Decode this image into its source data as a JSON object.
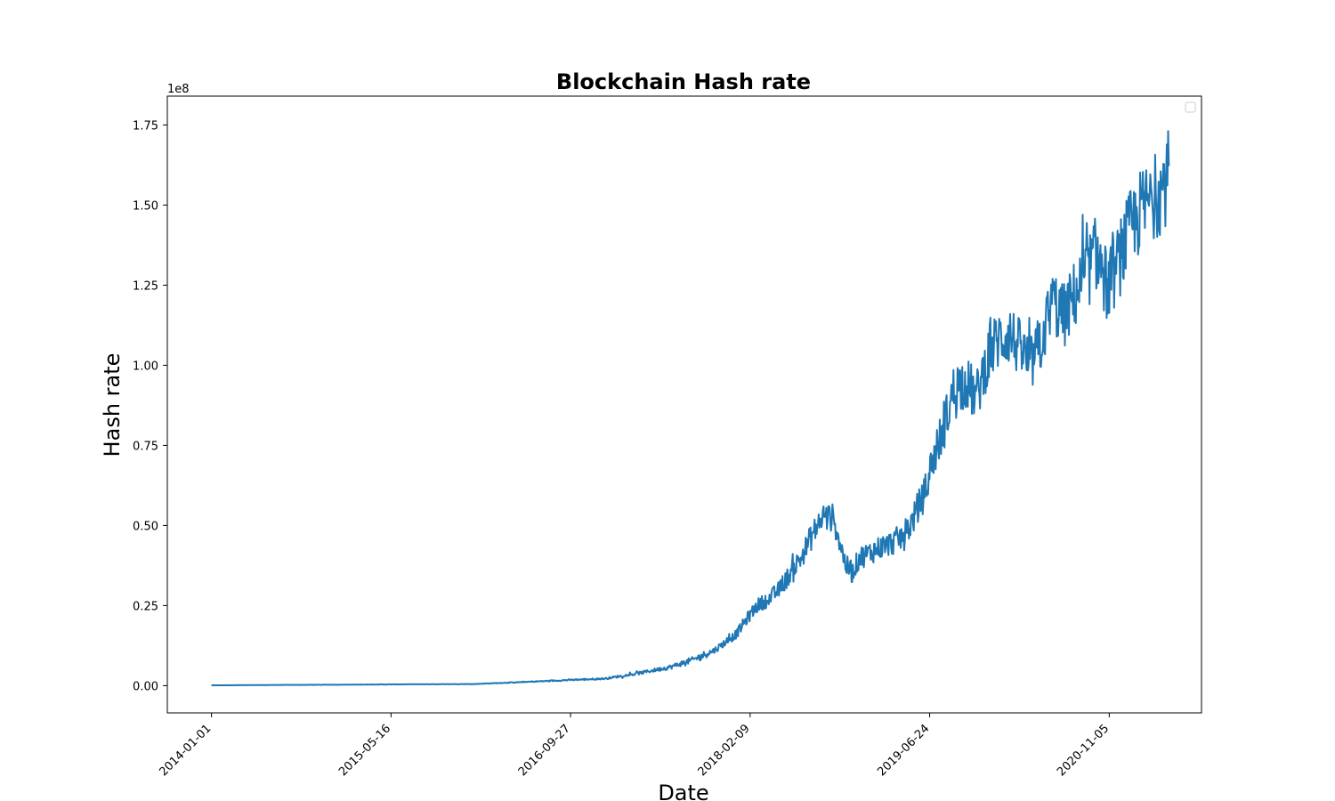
{
  "chart_data": {
    "type": "line",
    "title": "Blockchain Hash rate",
    "xlabel": "Date",
    "ylabel": "Hash rate",
    "y_scale_label": "1e8",
    "y_multiplier": 100000000,
    "xlim": [
      "2013-08-31",
      "2021-07-20"
    ],
    "ylim": [
      -0.085,
      1.84
    ],
    "x_ticks": [
      "2014-01-01",
      "2015-05-16",
      "2016-09-27",
      "2018-02-09",
      "2019-06-24",
      "2020-11-05"
    ],
    "y_ticks": [
      "0.00",
      "0.25",
      "0.50",
      "0.75",
      "1.00",
      "1.25",
      "1.50",
      "1.75"
    ],
    "y_tick_values": [
      0,
      0.25,
      0.5,
      0.75,
      1.0,
      1.25,
      1.5,
      1.75
    ],
    "grid": false,
    "legend": {
      "placement": "upper-right",
      "entries": []
    },
    "series": [
      {
        "color": "#1f77b4",
        "x": [
          "2014-01-01",
          "2014-06-01",
          "2015-01-01",
          "2015-06-01",
          "2016-01-01",
          "2016-06-01",
          "2016-10-01",
          "2017-01-01",
          "2017-04-01",
          "2017-07-01",
          "2017-09-01",
          "2017-11-01",
          "2018-01-01",
          "2018-02-01",
          "2018-03-01",
          "2018-04-01",
          "2018-05-01",
          "2018-06-01",
          "2018-07-01",
          "2018-08-01",
          "2018-09-01",
          "2018-10-01",
          "2018-11-01",
          "2018-11-20",
          "2018-12-10",
          "2019-01-01",
          "2019-02-01",
          "2019-03-01",
          "2019-04-01",
          "2019-05-01",
          "2019-05-20",
          "2019-06-10",
          "2019-07-01",
          "2019-08-01",
          "2019-09-01",
          "2019-10-01",
          "2019-11-01",
          "2019-12-01",
          "2020-01-01",
          "2020-02-01",
          "2020-03-01",
          "2020-04-01",
          "2020-05-01",
          "2020-06-01",
          "2020-07-01",
          "2020-08-01",
          "2020-09-01",
          "2020-10-01",
          "2020-11-01",
          "2020-12-01",
          "2021-01-01",
          "2021-02-01",
          "2021-03-01",
          "2021-04-01",
          "2021-04-20"
        ],
        "y": [
          0.001,
          0.002,
          0.003,
          0.004,
          0.005,
          0.012,
          0.018,
          0.022,
          0.038,
          0.058,
          0.08,
          0.11,
          0.16,
          0.21,
          0.25,
          0.27,
          0.3,
          0.35,
          0.4,
          0.47,
          0.53,
          0.52,
          0.38,
          0.35,
          0.4,
          0.41,
          0.43,
          0.44,
          0.46,
          0.5,
          0.55,
          0.6,
          0.7,
          0.8,
          0.93,
          0.95,
          0.9,
          1.02,
          1.08,
          1.1,
          1.05,
          1.0,
          1.08,
          1.2,
          1.15,
          1.22,
          1.28,
          1.35,
          1.24,
          1.32,
          1.42,
          1.48,
          1.52,
          1.55,
          1.6
        ]
      }
    ]
  }
}
